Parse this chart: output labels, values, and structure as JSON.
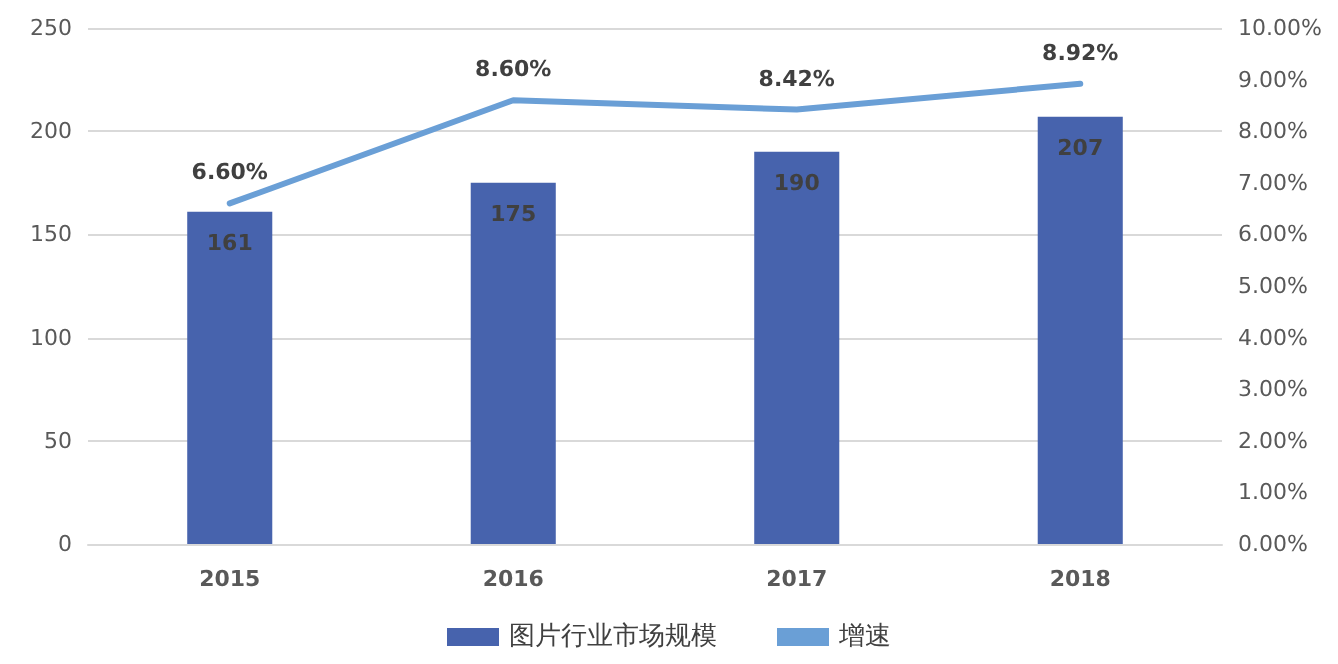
{
  "chart_data": {
    "type": "bar",
    "categories": [
      "2015",
      "2016",
      "2017",
      "2018"
    ],
    "series": [
      {
        "name": "图片行业市场规模",
        "color": "#4763ad",
        "values": [
          161,
          175,
          190,
          207
        ],
        "value_labels": [
          "161",
          "175",
          "190",
          "207"
        ]
      },
      {
        "name": "增速",
        "type": "line",
        "axis": "y2",
        "color": "#6a9fd6",
        "values": [
          6.6,
          8.6,
          8.42,
          8.92
        ],
        "value_labels": [
          "6.60%",
          "8.60%",
          "8.42%",
          "8.92%"
        ]
      }
    ],
    "ylim": [
      0,
      250
    ],
    "yticks": [
      0,
      50,
      100,
      150,
      200,
      250
    ],
    "y2lim": [
      0,
      10
    ],
    "y2ticks": [
      {
        "value": 0,
        "label": "0.00%"
      },
      {
        "value": 1,
        "label": "1.00%"
      },
      {
        "value": 2,
        "label": "2.00%"
      },
      {
        "value": 3,
        "label": "3.00%"
      },
      {
        "value": 4,
        "label": "4.00%"
      },
      {
        "value": 5,
        "label": "5.00%"
      },
      {
        "value": 6,
        "label": "6.00%"
      },
      {
        "value": 7,
        "label": "7.00%"
      },
      {
        "value": 8,
        "label": "8.00%"
      },
      {
        "value": 9,
        "label": "9.00%"
      },
      {
        "value": 10,
        "label": "10.00%"
      }
    ],
    "grid": "y",
    "legend": "bottom",
    "marker": "none",
    "line_style": "solid"
  }
}
